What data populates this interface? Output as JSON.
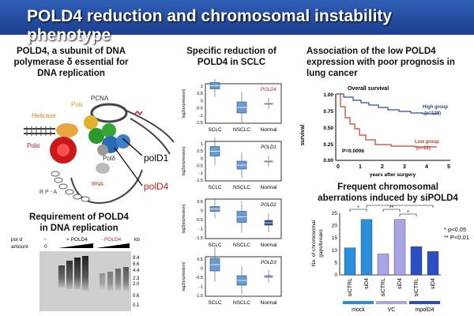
{
  "slide_title": "POLD4 reduction and chromosomal instability phenotype",
  "left": {
    "heading_lines": [
      "POLD4, a subunit of DNA",
      "polymerase δ essential for",
      "DNA replication"
    ],
    "diagram": {
      "labels": {
        "pcna": "PCNA",
        "pol_e": "Polε",
        "helicase": "Helicase",
        "pol_a": "Polα",
        "pol_d": "Polδ",
        "rna": "RNA",
        "rpa": "R P - A"
      },
      "callouts": [
        "polD1",
        "polD4"
      ]
    },
    "gel_heading_lines": [
      "Requirement of POLD4",
      "in DNA replication"
    ],
    "gel": {
      "row1_label": "pol d",
      "row2_label": "amount",
      "minus": "-",
      "zero": "0",
      "plus_label": "+ POLD4",
      "minus_label": "- POLD4",
      "kb_label": "kb",
      "markers": [
        "9.4",
        "6.6",
        "4.4",
        "2.3",
        "2.0",
        "0.6",
        "0.1"
      ]
    }
  },
  "middle": {
    "heading_lines": [
      "Specific reduction of",
      "POLD4 in SCLC"
    ],
    "panels": [
      {
        "gene": "POLD4",
        "ylabel": "log2(expression)",
        "yticks": [
          "1",
          "0.5",
          "0",
          "-0.5",
          "-1",
          "-1.5"
        ],
        "xlabels": [
          "SCLC",
          "NSCLC",
          "Normal"
        ]
      },
      {
        "gene": "POLD1",
        "ylabel": "log2(expression)",
        "yticks": [
          "1",
          "0.5",
          "0",
          "-0.5",
          "-1",
          "-1.5"
        ],
        "xlabels": [
          "SCLC",
          "NSCLC",
          "Normal"
        ]
      },
      {
        "gene": "POLD2",
        "ylabel": "log2(expression)",
        "yticks": [
          "0.5",
          "0",
          "-0.5",
          "-1",
          "-1.5"
        ],
        "xlabels": [
          "SCLC",
          "NSCLC",
          "Normal"
        ]
      },
      {
        "gene": "POLD3",
        "ylabel": "log2(expression)",
        "yticks": [
          "0.5",
          "0",
          "-0.5",
          "-1",
          "-1.5"
        ],
        "xlabels": [
          "SCLC",
          "NSCLC",
          "Normal"
        ]
      }
    ]
  },
  "right": {
    "survival_heading_lines": [
      "Association of the low POLD4",
      "expression with poor prognosis in",
      "lung cancer"
    ],
    "survival": {
      "title": "Overall survival",
      "ylabel": "survival",
      "xlabel": "years after surgery",
      "yticks": [
        "1.00",
        "0.75",
        "0.50",
        "0.25",
        "0.00"
      ],
      "xticks": [
        "0",
        "1",
        "2",
        "3",
        "4",
        "5"
      ],
      "high_label_1": "High group",
      "high_label_2": "(n=128)",
      "low_label_1": "Low group",
      "low_label_2": "(n=21)",
      "pvalue": "P=0.0006"
    },
    "aberr_heading_lines": [
      "Frequent chromosomal",
      "aberrations induced by siPOLD4"
    ],
    "bar_chart": {
      "ylabel_1": "No. of chromosomal",
      "ylabel_2": "gaps/breaks",
      "yticks": [
        "25",
        "20",
        "15",
        "10",
        "5",
        "0"
      ],
      "star": "*",
      "dstar": "**",
      "sig1": "* p<0.05",
      "sig2": "** P<0.01",
      "groups": [
        "mock",
        "VC",
        "mpolD4"
      ]
    }
  },
  "chart_data": {
    "type": "bar",
    "categories": [
      "siCTRL",
      "siD4",
      "siCTRL",
      "siD4",
      "siCTRL",
      "siD4"
    ],
    "values": [
      11,
      22.5,
      8.5,
      22.5,
      11.5,
      9.5
    ],
    "ylabel": "No. of chromosomal gaps/breaks",
    "ylim": [
      0,
      25
    ],
    "colors": [
      "#2a8fd8",
      "#2a8fd8",
      "#a8a4e6",
      "#a8a4e6",
      "#2b4fc2",
      "#2b4fc2"
    ]
  },
  "colors": {
    "header": "#2f5fb6",
    "gene_red": "#d02020",
    "high_curve": "#2a4a8a",
    "low_curve": "#c04030"
  }
}
